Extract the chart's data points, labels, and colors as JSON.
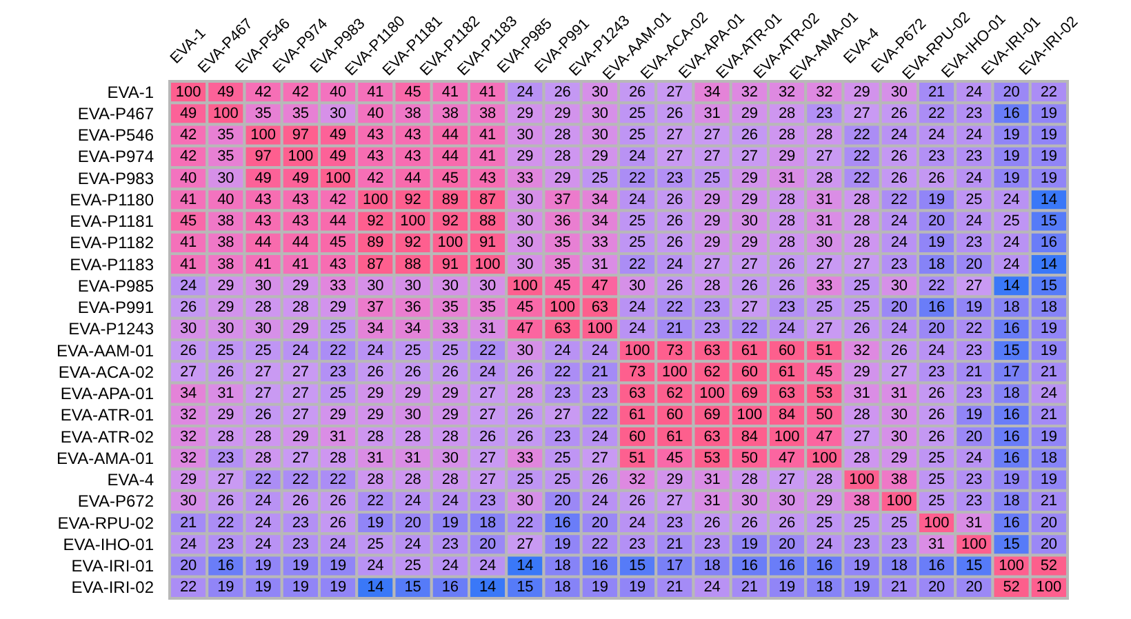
{
  "chart_data": {
    "type": "heatmap",
    "data_labels": true,
    "colors": [
      "#3a78f8",
      "#c99af3",
      "#fd5f8c",
      "#fe5f8f"
    ],
    "categories": [
      "EVA-1",
      "EVA-P467",
      "EVA-P546",
      "EVA-P974",
      "EVA-P983",
      "EVA-P1180",
      "EVA-P1181",
      "EVA-P1182",
      "EVA-P1183",
      "EVA-P985",
      "EVA-P991",
      "EVA-P1243",
      "EVA-AAM-01",
      "EVA-ACA-02",
      "EVA-APA-01",
      "EVA-ATR-01",
      "EVA-ATR-02",
      "EVA-AMA-01",
      "EVA-4",
      "EVA-P672",
      "EVA-RPU-02",
      "EVA-IHO-01",
      "EVA-IRI-01",
      "EVA-IRI-02"
    ],
    "y_categories": [
      "EVA-1",
      "EVA-P467",
      "EVA-P546",
      "EVA-P974",
      "EVA-P983",
      "EVA-P1180",
      "EVA-P1181",
      "EVA-P1182",
      "EVA-P1183",
      "EVA-P985",
      "EVA-P991",
      "EVA-P1243",
      "EVA-AAM-01",
      "EVA-ACA-02",
      "EVA-APA-01",
      "EVA-ATR-01",
      "EVA-ATR-02",
      "EVA-AMA-01",
      "EVA-4",
      "EVA-P672",
      "EVA-RPU-02",
      "EVA-IHO-01",
      "EVA-IRI-01",
      "EVA-IRI-02"
    ],
    "cells": [
      [
        100,
        49,
        42,
        42,
        40,
        41,
        45,
        41,
        41,
        24,
        26,
        30,
        26,
        27,
        34,
        32,
        32,
        32,
        29,
        30,
        21,
        24,
        20,
        22
      ],
      [
        49,
        100,
        35,
        35,
        30,
        40,
        38,
        38,
        38,
        29,
        29,
        30,
        25,
        26,
        31,
        29,
        28,
        23,
        27,
        26,
        22,
        23,
        16,
        19
      ],
      [
        42,
        35,
        100,
        97,
        49,
        43,
        43,
        44,
        41,
        30,
        28,
        30,
        25,
        27,
        27,
        26,
        28,
        28,
        22,
        24,
        24,
        24,
        19,
        19
      ],
      [
        42,
        35,
        97,
        100,
        49,
        43,
        43,
        44,
        41,
        29,
        28,
        29,
        24,
        27,
        27,
        27,
        29,
        27,
        22,
        26,
        23,
        23,
        19,
        19
      ],
      [
        40,
        30,
        49,
        49,
        100,
        42,
        44,
        45,
        43,
        33,
        29,
        25,
        22,
        23,
        25,
        29,
        31,
        28,
        22,
        26,
        26,
        24,
        19,
        19
      ],
      [
        41,
        40,
        43,
        43,
        42,
        100,
        92,
        89,
        87,
        30,
        37,
        34,
        24,
        26,
        29,
        29,
        28,
        31,
        28,
        22,
        19,
        25,
        24,
        14
      ],
      [
        45,
        38,
        43,
        43,
        44,
        92,
        100,
        92,
        88,
        30,
        36,
        34,
        25,
        26,
        29,
        30,
        28,
        31,
        28,
        24,
        20,
        24,
        25,
        15
      ],
      [
        41,
        38,
        44,
        44,
        45,
        89,
        92,
        100,
        91,
        30,
        35,
        33,
        25,
        26,
        29,
        29,
        28,
        30,
        28,
        24,
        19,
        23,
        24,
        16
      ],
      [
        41,
        38,
        41,
        41,
        43,
        87,
        88,
        91,
        100,
        30,
        35,
        31,
        22,
        24,
        27,
        27,
        26,
        27,
        27,
        23,
        18,
        20,
        24,
        14
      ],
      [
        24,
        29,
        30,
        29,
        33,
        30,
        30,
        30,
        30,
        100,
        45,
        47,
        30,
        26,
        28,
        26,
        26,
        33,
        25,
        30,
        22,
        27,
        14,
        15
      ],
      [
        26,
        29,
        28,
        28,
        29,
        37,
        36,
        35,
        35,
        45,
        100,
        63,
        24,
        22,
        23,
        27,
        23,
        25,
        25,
        20,
        16,
        19,
        18,
        18
      ],
      [
        30,
        30,
        30,
        29,
        25,
        34,
        34,
        33,
        31,
        47,
        63,
        100,
        24,
        21,
        23,
        22,
        24,
        27,
        26,
        24,
        20,
        22,
        16,
        19
      ],
      [
        26,
        25,
        25,
        24,
        22,
        24,
        25,
        25,
        22,
        30,
        24,
        24,
        100,
        73,
        63,
        61,
        60,
        51,
        32,
        26,
        24,
        23,
        15,
        19
      ],
      [
        27,
        26,
        27,
        27,
        23,
        26,
        26,
        26,
        24,
        26,
        22,
        21,
        73,
        100,
        62,
        60,
        61,
        45,
        29,
        27,
        23,
        21,
        17,
        21
      ],
      [
        34,
        31,
        27,
        27,
        25,
        29,
        29,
        29,
        27,
        28,
        23,
        23,
        63,
        62,
        100,
        69,
        63,
        53,
        31,
        31,
        26,
        23,
        18,
        24
      ],
      [
        32,
        29,
        26,
        27,
        29,
        29,
        30,
        29,
        27,
        26,
        27,
        22,
        61,
        60,
        69,
        100,
        84,
        50,
        28,
        30,
        26,
        19,
        16,
        21
      ],
      [
        32,
        28,
        28,
        29,
        31,
        28,
        28,
        28,
        26,
        26,
        23,
        24,
        60,
        61,
        63,
        84,
        100,
        47,
        27,
        30,
        26,
        20,
        16,
        19
      ],
      [
        32,
        23,
        28,
        27,
        28,
        31,
        31,
        30,
        27,
        33,
        25,
        27,
        51,
        45,
        53,
        50,
        47,
        100,
        28,
        29,
        25,
        24,
        16,
        18
      ],
      [
        29,
        27,
        22,
        22,
        22,
        28,
        28,
        28,
        27,
        25,
        25,
        26,
        32,
        29,
        31,
        28,
        27,
        28,
        100,
        38,
        25,
        23,
        19,
        19
      ],
      [
        30,
        26,
        24,
        26,
        26,
        22,
        24,
        24,
        23,
        30,
        20,
        24,
        26,
        27,
        31,
        30,
        30,
        29,
        38,
        100,
        25,
        23,
        18,
        21
      ],
      [
        21,
        22,
        24,
        23,
        26,
        19,
        20,
        19,
        18,
        22,
        16,
        20,
        24,
        23,
        26,
        26,
        26,
        25,
        25,
        25,
        100,
        31,
        16,
        20
      ],
      [
        24,
        23,
        24,
        23,
        24,
        25,
        24,
        23,
        20,
        27,
        19,
        22,
        23,
        21,
        23,
        19,
        20,
        24,
        23,
        23,
        31,
        100,
        15,
        20
      ],
      [
        20,
        16,
        19,
        19,
        19,
        24,
        25,
        24,
        24,
        14,
        18,
        16,
        15,
        17,
        18,
        16,
        16,
        16,
        19,
        18,
        16,
        15,
        100,
        52
      ],
      [
        22,
        19,
        19,
        19,
        19,
        14,
        15,
        16,
        14,
        15,
        18,
        19,
        19,
        21,
        24,
        21,
        19,
        18,
        19,
        21,
        20,
        20,
        52,
        100
      ]
    ]
  }
}
